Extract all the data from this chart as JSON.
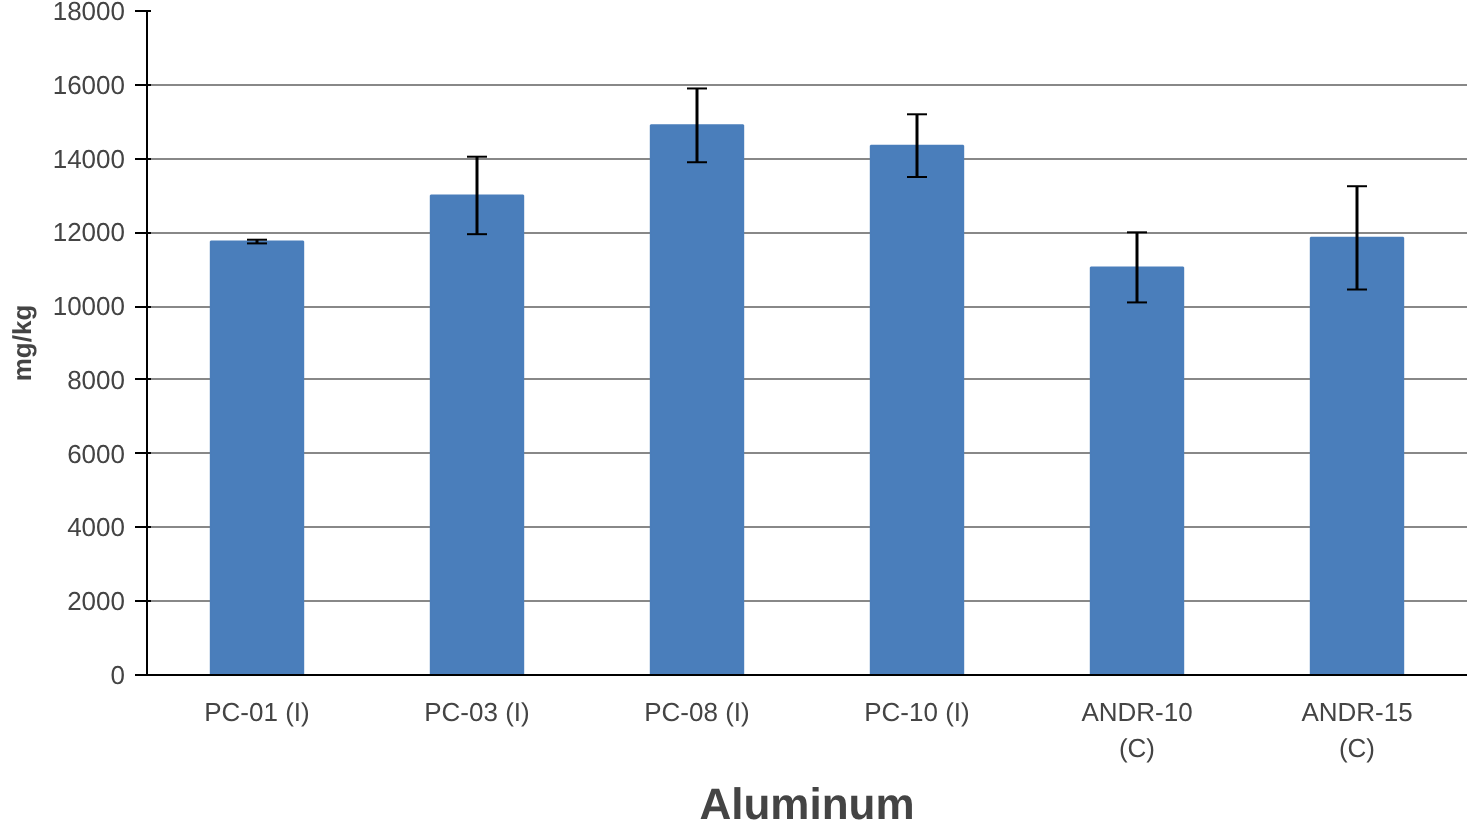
{
  "chart_data": {
    "type": "bar",
    "xlabel": "Aluminum",
    "ylabel": "mg/kg",
    "categories": [
      "PC-01 (I)",
      "PC-03 (I)",
      "PC-08 (I)",
      "PC-10 (I)",
      "ANDR-10\n(C)",
      "ANDR-15\n(C)"
    ],
    "values": [
      11750,
      13000,
      14900,
      14350,
      11050,
      11850
    ],
    "errors": [
      50,
      1050,
      1000,
      850,
      950,
      1400
    ],
    "color": "#4a7ebb",
    "ylim": [
      0,
      18000
    ],
    "yticks": [
      0,
      2000,
      4000,
      6000,
      8000,
      10000,
      12000,
      14000,
      16000,
      18000
    ],
    "grid": "y"
  }
}
